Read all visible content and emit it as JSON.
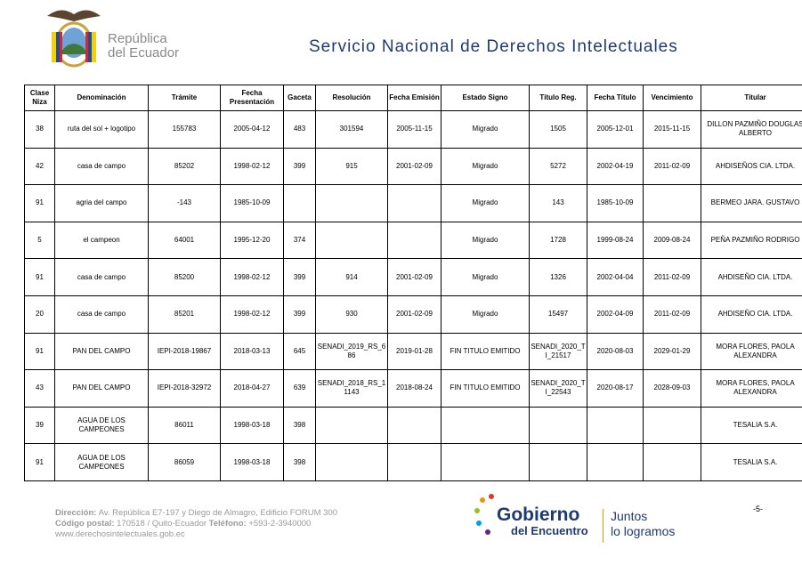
{
  "header": {
    "logo_line1": "República",
    "logo_line2": "del Ecuador",
    "title": "Servicio Nacional de Derechos Intelectuales"
  },
  "table": {
    "columns": [
      "Clase Niza",
      "Denominación",
      "Trámite",
      "Fecha Presentación",
      "Gaceta",
      "Resolución",
      "Fecha Emisión",
      "Estado Signo",
      "Título Reg.",
      "Fecha Título",
      "Vencimiento",
      "Titular"
    ],
    "rows": [
      [
        "38",
        "ruta del sol + logotipo",
        "155783",
        "2005-04-12",
        "483",
        "301594",
        "2005-11-15",
        "Migrado",
        "1505",
        "2005-12-01",
        "2015-11-15",
        "DILLON PAZMIÑO DOUGLAS ALBERTO"
      ],
      [
        "42",
        "casa de campo",
        "85202",
        "1998-02-12",
        "399",
        "915",
        "2001-02-09",
        "Migrado",
        "5272",
        "2002-04-19",
        "2011-02-09",
        "AHDISEÑOS CIA. LTDA."
      ],
      [
        "91",
        "agria del campo",
        "-143",
        "1985-10-09",
        null,
        null,
        null,
        "Migrado",
        "143",
        "1985-10-09",
        null,
        "BERMEO JARA. GUSTAVO"
      ],
      [
        "5",
        "el campeon",
        "64001",
        "1995-12-20",
        "374",
        null,
        null,
        "Migrado",
        "1728",
        "1999-08-24",
        "2009-08-24",
        "PEÑA PAZMIÑO RODRIGO"
      ],
      [
        "91",
        "casa de campo",
        "85200",
        "1998-02-12",
        "399",
        "914",
        "2001-02-09",
        "Migrado",
        "1326",
        "2002-04-04",
        "2011-02-09",
        "AHDISEÑO CIA. LTDA."
      ],
      [
        "20",
        "casa de campo",
        "85201",
        "1998-02-12",
        "399",
        "930",
        "2001-02-09",
        "Migrado",
        "15497",
        "2002-04-09",
        "2011-02-09",
        "AHDISEÑO CIA. LTDA."
      ],
      [
        "91",
        "PAN DEL CAMPO",
        "IEPI-2018-19867",
        "2018-03-13",
        "645",
        "SENADI_2019_RS_686",
        "2019-01-28",
        "FIN TITULO EMITIDO",
        "SENADI_2020_TI_21517",
        "2020-08-03",
        "2029-01-29",
        "MORA FLORES, PAOLA ALEXANDRA"
      ],
      [
        "43",
        "PAN DEL CAMPO",
        "IEPI-2018-32972",
        "2018-04-27",
        "639",
        "SENADI_2018_RS_11143",
        "2018-08-24",
        "FIN TITULO EMITIDO",
        "SENADI_2020_TI_22543",
        "2020-08-17",
        "2028-09-03",
        "MORA FLORES, PAOLA ALEXANDRA"
      ],
      [
        "39",
        "AGUA DE LOS CAMPEONES",
        "86011",
        "1998-03-18",
        "398",
        null,
        null,
        null,
        null,
        null,
        null,
        "TESALIA S.A."
      ],
      [
        "91",
        "AGUA DE LOS CAMPEONES",
        "86059",
        "1998-03-18",
        "398",
        null,
        null,
        null,
        null,
        null,
        null,
        "TESALIA S.A."
      ]
    ]
  },
  "footer": {
    "address_label": "Dirección:",
    "address": "Av. República E7-197 y Diego de Almagro, Edificio FORUM 300",
    "postal_label": "Código postal:",
    "postal": "170518 / Quito-Ecuador",
    "phone_label": "Teléfono:",
    "phone": "+593-2-3940000",
    "web": "www.derechosintelectuales.gob.ec",
    "brand_line1": "Gobierno",
    "brand_line2": "del Encuentro",
    "slogan_line1": "Juntos",
    "slogan_line2": "lo logramos",
    "page": "-5-"
  }
}
